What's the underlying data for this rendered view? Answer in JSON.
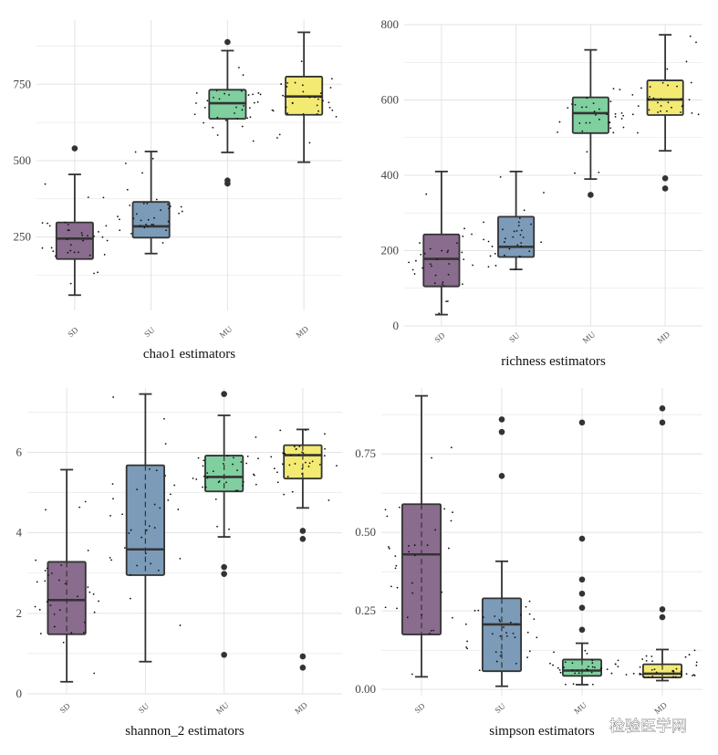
{
  "colors": {
    "SD": "#8a6c8e",
    "SU": "#7b9bb8",
    "MU": "#7fcf9f",
    "MD": "#f3ea74",
    "grid": "#e3e3e3",
    "box_line": "#333333",
    "point": "#111111"
  },
  "watermark": "检验医学网",
  "chart_data": [
    {
      "type": "box",
      "xlabel": "chao1 estimators",
      "ylabel": "",
      "categories": [
        "SD",
        "SU",
        "MU",
        "MD"
      ],
      "y_ticks": [
        250,
        500,
        750
      ],
      "ylim": [
        10,
        960
      ],
      "grid": true,
      "boxes": [
        {
          "category": "SD",
          "min": 60,
          "q1": 178,
          "median": 245,
          "q3": 298,
          "max": 455,
          "outliers": [
            540
          ]
        },
        {
          "category": "SU",
          "min": 196,
          "q1": 248,
          "median": 285,
          "q3": 365,
          "max": 530,
          "outliers": []
        },
        {
          "category": "MU",
          "min": 527,
          "q1": 637,
          "median": 688,
          "q3": 732,
          "max": 860,
          "outliers": [
            888,
            435,
            425
          ]
        },
        {
          "category": "MD",
          "min": 495,
          "q1": 650,
          "median": 710,
          "q3": 775,
          "max": 920,
          "outliers": []
        }
      ]
    },
    {
      "type": "box",
      "xlabel": "richness estimators",
      "ylabel": "",
      "categories": [
        "SD",
        "SU",
        "MU",
        "MD"
      ],
      "y_ticks": [
        0,
        200,
        400,
        600,
        800
      ],
      "y_tick_labels": [
        "0",
        "200",
        "400",
        "600",
        "800"
      ],
      "ylim": [
        0,
        800
      ],
      "grid": true,
      "boxes": [
        {
          "category": "SD",
          "min": 30,
          "q1": 105,
          "median": 178,
          "q3": 243,
          "max": 410,
          "outliers": []
        },
        {
          "category": "SU",
          "min": 150,
          "q1": 183,
          "median": 210,
          "q3": 290,
          "max": 410,
          "outliers": []
        },
        {
          "category": "MU",
          "min": 390,
          "q1": 512,
          "median": 565,
          "q3": 607,
          "max": 733,
          "outliers": [
            348
          ]
        },
        {
          "category": "MD",
          "min": 465,
          "q1": 560,
          "median": 601,
          "q3": 652,
          "max": 773,
          "outliers": [
            392,
            365
          ]
        }
      ]
    },
    {
      "type": "box",
      "xlabel": "shannon_2 estimators",
      "ylabel": "",
      "categories": [
        "SD",
        "SU",
        "MU",
        "MD"
      ],
      "y_ticks": [
        0,
        2,
        4,
        6
      ],
      "ylim": [
        0,
        7.6
      ],
      "grid": true,
      "boxes": [
        {
          "category": "SD",
          "min": 0.3,
          "q1": 1.48,
          "median": 2.33,
          "q3": 3.28,
          "max": 5.57,
          "outliers": []
        },
        {
          "category": "SU",
          "min": 0.8,
          "q1": 2.95,
          "median": 3.59,
          "q3": 5.68,
          "max": 7.45,
          "outliers": []
        },
        {
          "category": "MU",
          "min": 3.9,
          "q1": 5.03,
          "median": 5.39,
          "q3": 5.92,
          "max": 6.92,
          "outliers": [
            7.45,
            3.15,
            2.98,
            0.97
          ]
        },
        {
          "category": "MD",
          "min": 4.62,
          "q1": 5.35,
          "median": 5.93,
          "q3": 6.18,
          "max": 6.57,
          "outliers": [
            4.05,
            3.85,
            0.93,
            0.65
          ]
        }
      ]
    },
    {
      "type": "box",
      "xlabel": "simpson estimators",
      "ylabel": "",
      "categories": [
        "SD",
        "SU",
        "MU",
        "MD"
      ],
      "y_ticks": [
        0.0,
        0.25,
        0.5,
        0.75
      ],
      "y_tick_labels": [
        "0.00",
        "0.25",
        "0.50",
        "0.75"
      ],
      "ylim": [
        -0.02,
        0.96
      ],
      "grid": true,
      "boxes": [
        {
          "category": "SD",
          "min": 0.04,
          "q1": 0.175,
          "median": 0.43,
          "q3": 0.59,
          "max": 0.935,
          "outliers": []
        },
        {
          "category": "SU",
          "min": 0.01,
          "q1": 0.058,
          "median": 0.207,
          "q3": 0.29,
          "max": 0.408,
          "outliers": [
            0.86,
            0.82,
            0.68
          ]
        },
        {
          "category": "MU",
          "min": 0.015,
          "q1": 0.043,
          "median": 0.06,
          "q3": 0.095,
          "max": 0.147,
          "outliers": [
            0.85,
            0.48,
            0.35,
            0.305,
            0.26,
            0.19
          ]
        },
        {
          "category": "MD",
          "min": 0.028,
          "q1": 0.038,
          "median": 0.05,
          "q3": 0.08,
          "max": 0.127,
          "outliers": [
            0.895,
            0.85,
            0.255,
            0.23
          ]
        }
      ]
    }
  ]
}
